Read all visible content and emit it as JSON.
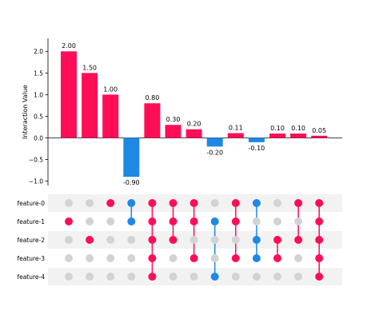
{
  "chart_data": {
    "type": "bar",
    "ylabel": "Interaction Value",
    "ylim": [
      -1.1,
      2.3
    ],
    "yticks": [
      -1.0,
      -0.5,
      0.0,
      0.5,
      1.0,
      1.5,
      2.0
    ],
    "ytick_labels": [
      "−1.0",
      "−0.5",
      "0.0",
      "0.5",
      "1.0",
      "1.5",
      "2.0"
    ],
    "values": [
      2.0,
      1.5,
      1.0,
      -0.9,
      0.8,
      0.3,
      0.2,
      -0.2,
      0.11,
      -0.1,
      0.1,
      0.1,
      0.05
    ],
    "value_labels": [
      "2.00",
      "1.50",
      "1.00",
      "-0.90",
      "0.80",
      "0.30",
      "0.20",
      "-0.20",
      "0.11",
      "-0.10",
      "0.10",
      "0.10",
      "0.05"
    ],
    "features": [
      "feature-0",
      "feature-1",
      "feature-2",
      "feature-3",
      "feature-4"
    ],
    "membership": [
      [
        1
      ],
      [
        2
      ],
      [
        0
      ],
      [
        0,
        1
      ],
      [
        0,
        1,
        2,
        3,
        4
      ],
      [
        0,
        1,
        2
      ],
      [
        0,
        1,
        3
      ],
      [
        1,
        4
      ],
      [
        0,
        1,
        3
      ],
      [
        0,
        2,
        3
      ],
      [
        2,
        3
      ],
      [
        0,
        2
      ],
      [
        0,
        1,
        2,
        3,
        4
      ]
    ],
    "colors": {
      "positive": "#ff0d57",
      "negative": "#1e88e5",
      "inactive": "#d3d3d3",
      "band": "#f2f2f2"
    }
  }
}
